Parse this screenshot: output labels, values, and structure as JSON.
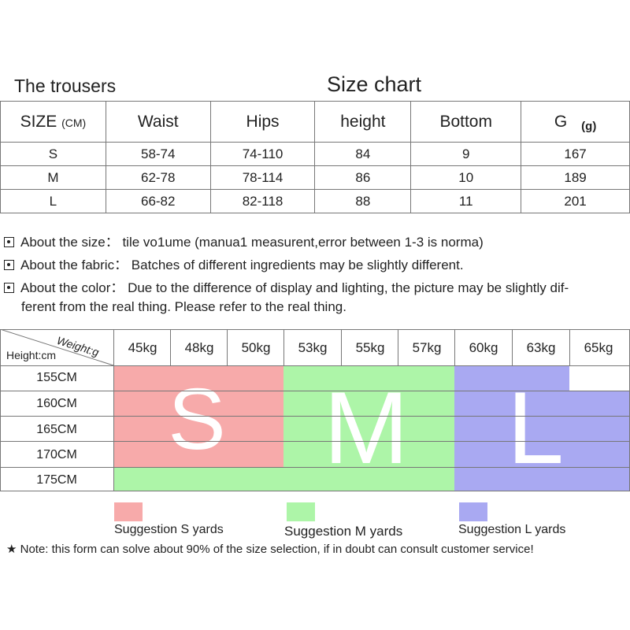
{
  "titles": {
    "trousers": "The trousers",
    "chart": "Size chart"
  },
  "size_table": {
    "headers": [
      "SIZE",
      "(CM)",
      "Waist",
      "Hips",
      "height",
      "Bottom",
      "G",
      "(g)"
    ],
    "rows": [
      [
        "S",
        "58-74",
        "74-110",
        "84",
        "9",
        "167"
      ],
      [
        "M",
        "62-78",
        "78-114",
        "86",
        "10",
        "189"
      ],
      [
        "L",
        "66-82",
        "82-118",
        "88",
        "11",
        "201"
      ]
    ]
  },
  "notes": {
    "size": "About the size： tile vo1ume (manua1 measurent,error between 1-3 is norma)",
    "fabric": "About the fabric： Batches of different ingredients may be slightly different.",
    "color_line1": "About the color： Due to the difference of display and lighting, the picture may be slightly dif-",
    "color_line2": "ferent from the real thing. Please refer to the real thing."
  },
  "grid": {
    "corner_weight": "Weight:g",
    "corner_height": "Height:cm",
    "weights": [
      "45kg",
      "48kg",
      "50kg",
      "53kg",
      "55kg",
      "57kg",
      "60kg",
      "63kg",
      "65kg"
    ],
    "heights": [
      "155CM",
      "160CM",
      "165CM",
      "170CM",
      "175CM"
    ],
    "letters": [
      "S",
      "M",
      "L"
    ]
  },
  "legend": {
    "s": "Suggestion S yards",
    "m": "Suggestion M yards",
    "l": "Suggestion L yards"
  },
  "footnote": "★ Note: this form can solve about 90% of the size selection, if in doubt can consult customer service!",
  "colors": {
    "s": "#f7aaaa",
    "m": "#adf5a8",
    "l": "#a9a9f2"
  }
}
